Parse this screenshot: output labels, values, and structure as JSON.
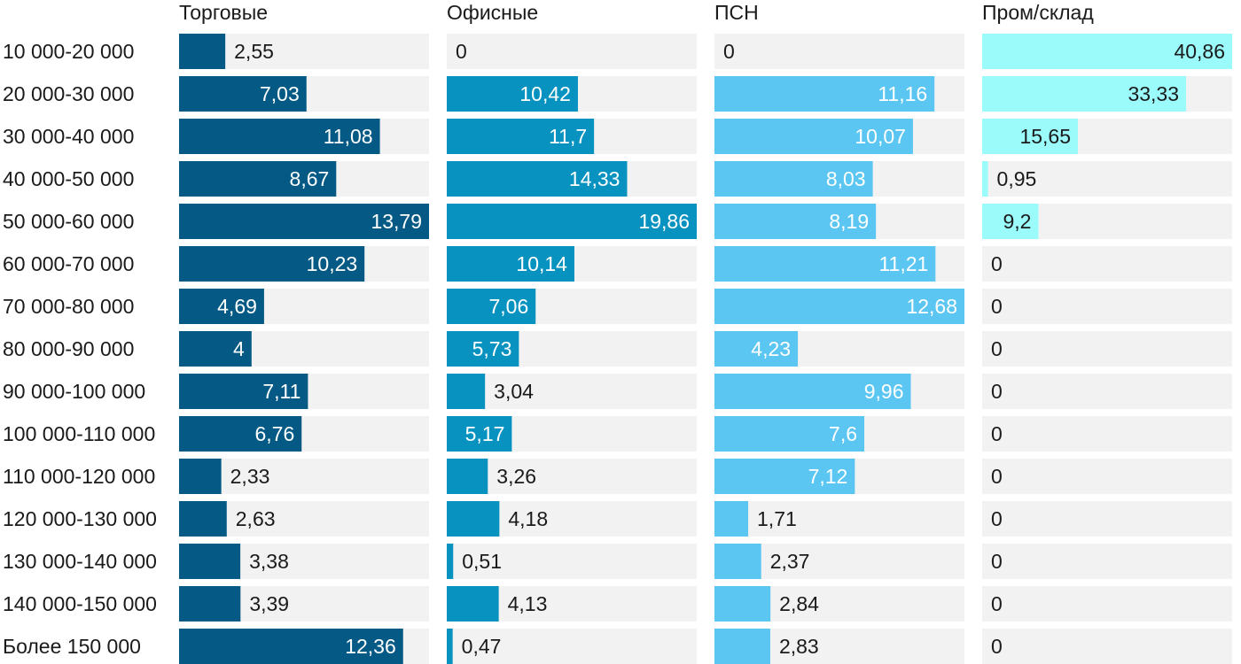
{
  "chart_data": {
    "type": "bar",
    "orientation": "horizontal",
    "layout": "small-multiples",
    "categories": [
      "10 000-20 000",
      "20 000-30 000",
      "30 000-40 000",
      "40 000-50 000",
      "50 000-60 000",
      "60 000-70 000",
      "70 000-80 000",
      "80 000-90 000",
      "90 000-100 000",
      "100 000-110 000",
      "110 000-120 000",
      "120 000-130 000",
      "130 000-140 000",
      "140 000-150 000",
      "Более 150 000"
    ],
    "series": [
      {
        "name": "Торговые",
        "color": "#055a85",
        "values": [
          2.55,
          7.03,
          11.08,
          8.67,
          13.79,
          10.23,
          4.69,
          4,
          7.11,
          6.76,
          2.33,
          2.63,
          3.38,
          3.39,
          12.36
        ],
        "labels": [
          "2,55",
          "7,03",
          "11,08",
          "8,67",
          "13,79",
          "10,23",
          "4,69",
          "4",
          "7,11",
          "6,76",
          "2,33",
          "2,63",
          "3,38",
          "3,39",
          "12,36"
        ]
      },
      {
        "name": "Офисные",
        "color": "#0892c0",
        "values": [
          0,
          10.42,
          11.7,
          14.33,
          19.86,
          10.14,
          7.06,
          5.73,
          3.04,
          5.17,
          3.26,
          4.18,
          0.51,
          4.13,
          0.47
        ],
        "labels": [
          "0",
          "10,42",
          "11,7",
          "14,33",
          "19,86",
          "10,14",
          "7,06",
          "5,73",
          "3,04",
          "5,17",
          "3,26",
          "4,18",
          "0,51",
          "4,13",
          "0,47"
        ]
      },
      {
        "name": "ПСН",
        "color": "#5cc6f2",
        "values": [
          0,
          11.16,
          10.07,
          8.03,
          8.19,
          11.21,
          12.68,
          4.23,
          9.96,
          7.6,
          7.12,
          1.71,
          2.37,
          2.84,
          2.83
        ],
        "labels": [
          "0",
          "11,16",
          "10,07",
          "8,03",
          "8,19",
          "11,21",
          "12,68",
          "4,23",
          "9,96",
          "7,6",
          "7,12",
          "1,71",
          "2,37",
          "2,84",
          "2,83"
        ]
      },
      {
        "name": "Пром/склад",
        "color": "#9bfbfb",
        "values": [
          40.86,
          33.33,
          15.65,
          0.95,
          9.2,
          0,
          0,
          0,
          0,
          0,
          0,
          0,
          0,
          0,
          0
        ],
        "labels": [
          "40,86",
          "33,33",
          "15,65",
          "0,95",
          "9,2",
          "0",
          "0",
          "0",
          "0",
          "0",
          "0",
          "0",
          "0",
          "0",
          "0"
        ]
      }
    ],
    "xlim": [
      [
        0,
        13.79
      ],
      [
        0,
        19.86
      ],
      [
        0,
        12.68
      ],
      [
        0,
        40.86
      ]
    ],
    "grid": false,
    "legend": "none"
  }
}
